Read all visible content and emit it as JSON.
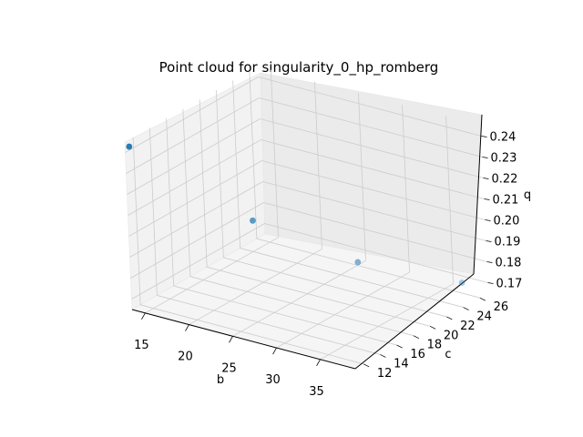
{
  "chart_data": {
    "type": "scatter",
    "projection": "3d",
    "title": "Point cloud for singularity_0_hp_romberg",
    "xlabel": "b",
    "ylabel": "c",
    "zlabel": "q",
    "xticks": [
      "15",
      "20",
      "25",
      "30",
      "35"
    ],
    "yticks": [
      "12",
      "14",
      "16",
      "18",
      "20",
      "22",
      "24",
      "26"
    ],
    "zticks": [
      "0.17",
      "0.18",
      "0.19",
      "0.20",
      "0.21",
      "0.22",
      "0.23",
      "0.24"
    ],
    "xlim": [
      13.5,
      39.0
    ],
    "ylim": [
      11.0,
      27.0
    ],
    "zlim": [
      0.165,
      0.245
    ],
    "grid": true,
    "points": [
      {
        "x": 13.0,
        "y": 12.0,
        "z": 0.24
      },
      {
        "x": 21.0,
        "y": 18.0,
        "z": 0.2
      },
      {
        "x": 29.0,
        "y": 22.0,
        "z": 0.18
      },
      {
        "x": 37.0,
        "y": 26.0,
        "z": 0.17
      }
    ],
    "point_color": "#1f77b4"
  }
}
